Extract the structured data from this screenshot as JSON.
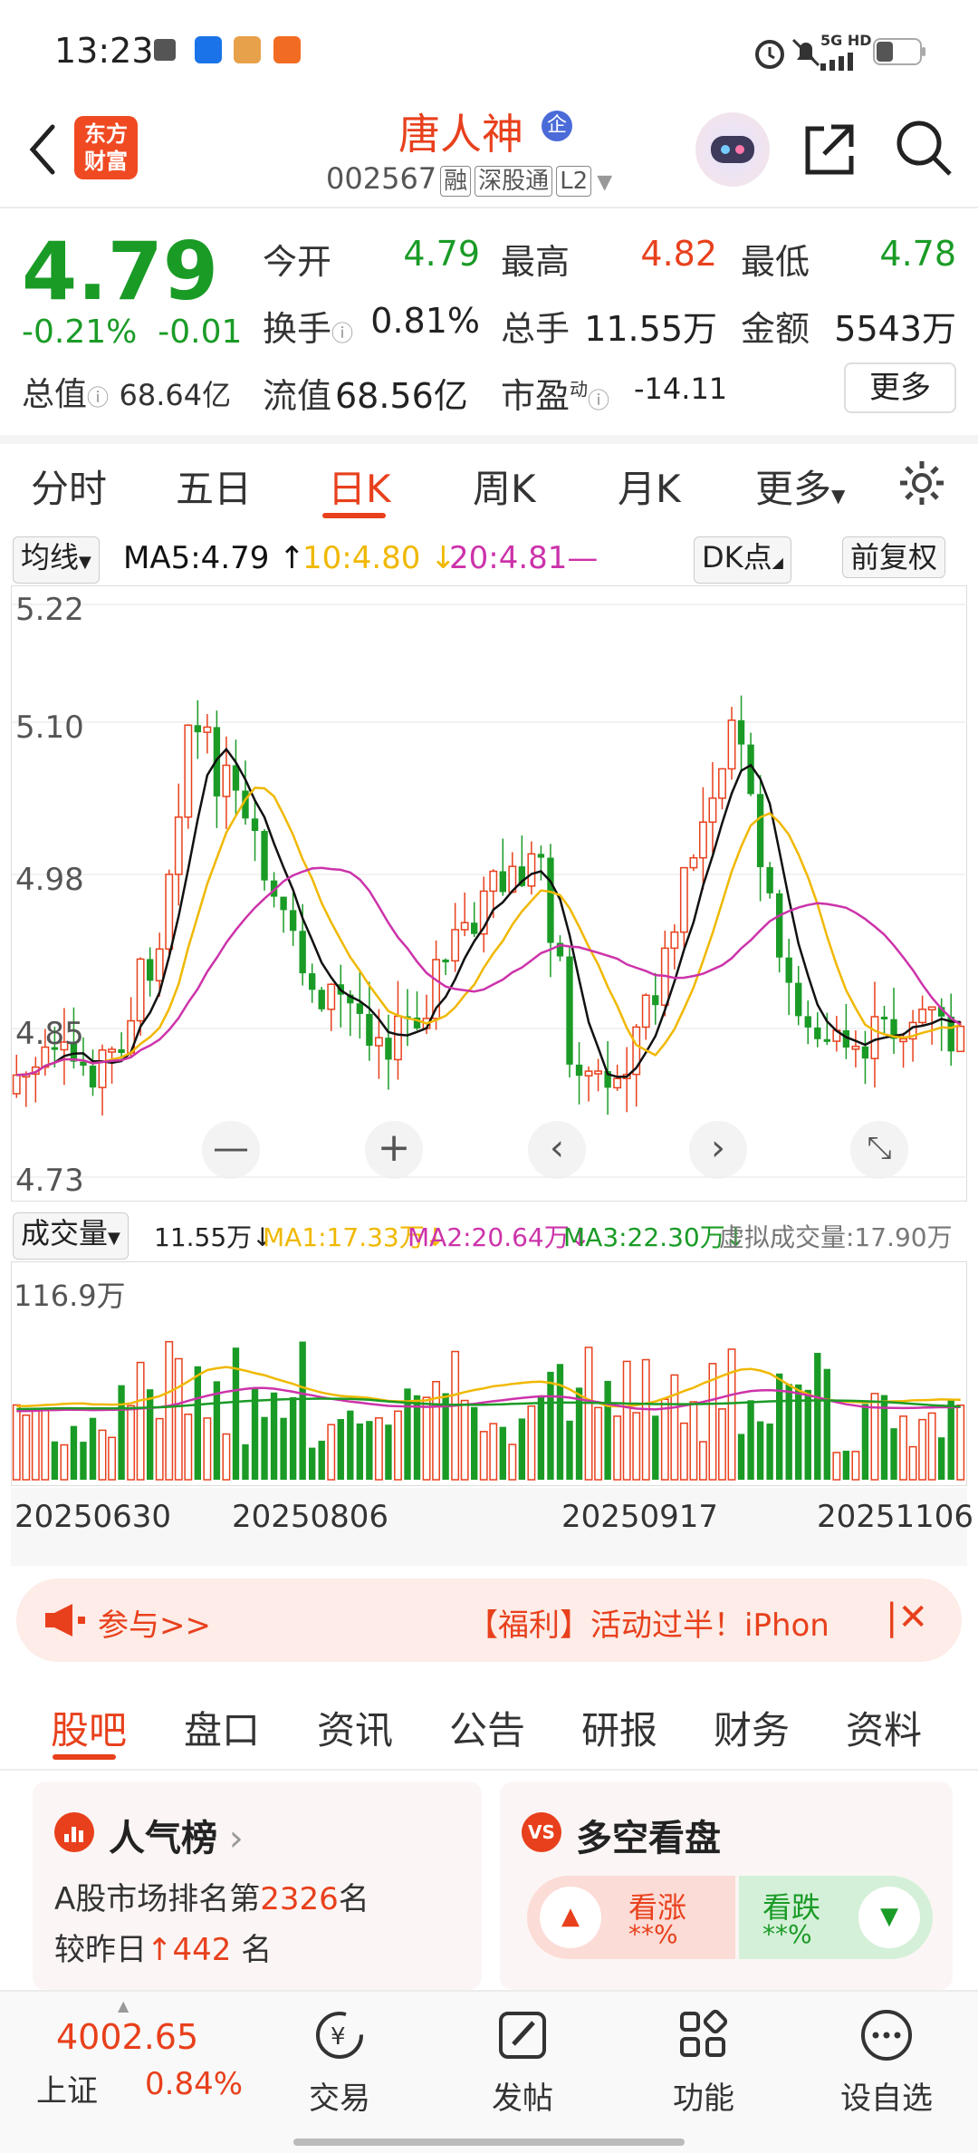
{
  "status_bar": {
    "time": "13:23",
    "network": "5G HD"
  },
  "header": {
    "logo_text": "东方财富",
    "stock_name": "唐人神",
    "enterprise_badge": "企",
    "code": "002567",
    "tags": [
      "融",
      "深股通",
      "L2"
    ]
  },
  "quote": {
    "price": "4.79",
    "change_pct": "-0.21%",
    "change": "-0.01",
    "open_label": "今开",
    "open": "4.79",
    "high_label": "最高",
    "high": "4.82",
    "low_label": "最低",
    "low": "4.78",
    "turnover_label": "换手",
    "turnover": "0.81%",
    "volume_label": "总手",
    "volume": "11.55万",
    "amount_label": "金额",
    "amount": "5543万",
    "mktcap_label": "总值",
    "mktcap": "68.64亿",
    "float_label": "流值",
    "float_cap": "68.56亿",
    "pe_label": "市盈",
    "pe_sup": "动",
    "pe": "-14.11",
    "more_label": "更多"
  },
  "chart_tabs": [
    "分时",
    "五日",
    "日K",
    "周K",
    "月K",
    "更多"
  ],
  "active_tab": "日K",
  "ma_row": {
    "ma_select": "均线",
    "ma5": "MA5:4.79 ↑",
    "ma10": "10:4.80 ↓",
    "ma20": "20:4.81—",
    "dk": "DK点",
    "adjust": "前复权"
  },
  "kchart": {
    "y_ticks": [
      "5.22",
      "5.10",
      "4.98",
      "4.85",
      "4.73"
    ]
  },
  "volume_row": {
    "select": "成交量",
    "vol": "11.55万↓",
    "ma1": "MA1:17.33万↓",
    "ma2": "MA2:20.64万↓",
    "ma3": "MA3:22.30万↓",
    "virtual": "虚拟成交量:17.90万",
    "max": "116.9万"
  },
  "x_dates": [
    "20250630",
    "20250806",
    "20250917",
    "20251106"
  ],
  "chart_data": {
    "type": "candlestick",
    "title": "",
    "ylim": [
      4.73,
      5.22
    ],
    "dates_shown": [
      "20250630",
      "20250806",
      "20250917",
      "20251106"
    ],
    "colors": {
      "up": "#e8401c",
      "down": "#1a9b26",
      "ma5": "#111111",
      "ma10": "#f0b800",
      "ma20": "#cc33aa"
    }
  },
  "ad": {
    "cta": "参与>>",
    "text": "【福利】活动过半！iPhon"
  },
  "bottom_tabs": [
    "股吧",
    "盘口",
    "资讯",
    "公告",
    "研报",
    "财务",
    "资料"
  ],
  "cards": {
    "popularity": {
      "title": "人气榜",
      "line1_pre": "A股市场排名第",
      "rank": "2326",
      "line1_post": "名",
      "line2_pre": "较昨日",
      "delta": "442",
      "line2_post": "名"
    },
    "sentiment": {
      "title": "多空看盘",
      "bull": "看涨",
      "bull_val": "**%",
      "bear": "看跌",
      "bear_val": "**%"
    }
  },
  "nav": {
    "index_value": "4002.65",
    "index_name": "上证",
    "index_change": "0.84%",
    "items": [
      "交易",
      "发帖",
      "功能",
      "设自选"
    ]
  }
}
